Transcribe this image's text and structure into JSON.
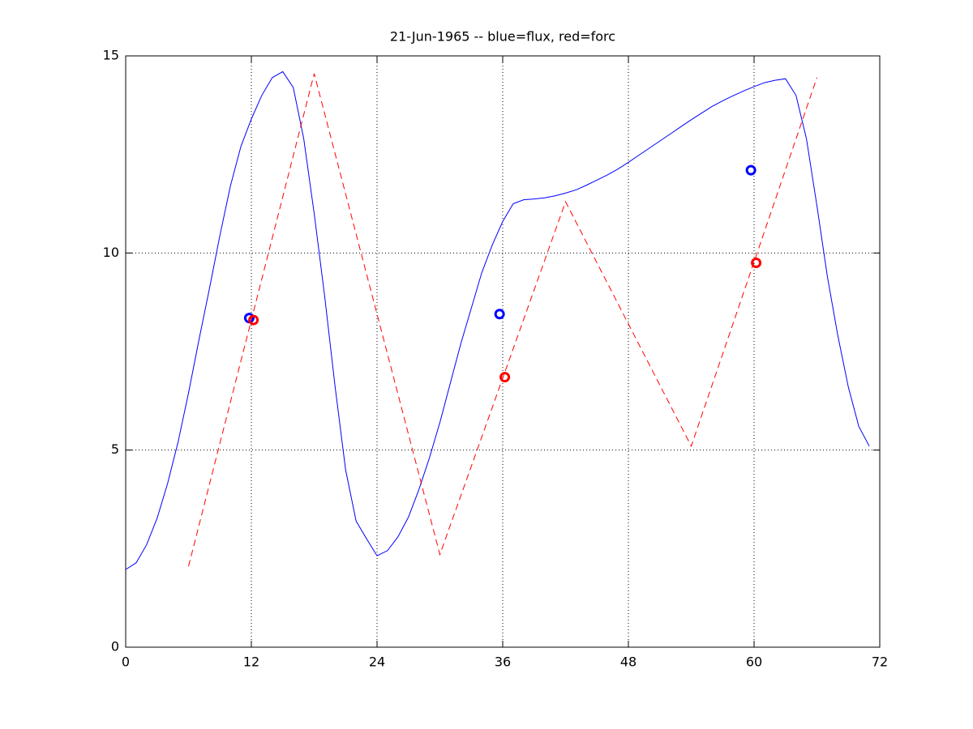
{
  "chart_data": {
    "type": "line",
    "title": "21-Jun-1965 -- blue=flux, red=forc",
    "xlim": [
      0,
      72
    ],
    "xticks": [
      0,
      12,
      24,
      36,
      48,
      60,
      72
    ],
    "ylim": [
      0,
      15
    ],
    "yticks": [
      0,
      5,
      10,
      15
    ],
    "grid": true,
    "series": [
      {
        "color": "#0000ff",
        "style": "solid",
        "x": [
          0,
          1,
          2,
          3,
          4,
          5,
          6,
          7,
          8,
          9,
          10,
          11,
          12,
          13,
          14,
          15,
          16,
          17,
          18,
          19,
          20,
          21,
          22,
          23,
          24,
          25,
          26,
          27,
          28,
          29,
          30,
          31,
          32,
          33,
          34,
          35,
          36,
          37,
          38,
          39,
          40,
          41,
          42,
          43,
          44,
          45,
          46,
          47,
          48,
          49,
          50,
          51,
          52,
          53,
          54,
          55,
          56,
          57,
          58,
          59,
          60,
          61,
          62,
          63,
          64,
          65,
          66,
          67,
          68,
          69,
          70,
          71
        ],
        "values": [
          1.97,
          2.14,
          2.6,
          3.27,
          4.15,
          5.2,
          6.45,
          7.8,
          9.1,
          10.45,
          11.7,
          12.7,
          13.4,
          14.0,
          14.45,
          14.6,
          14.2,
          12.9,
          11.0,
          8.9,
          6.6,
          4.5,
          3.2,
          2.75,
          2.32,
          2.45,
          2.8,
          3.3,
          4.0,
          4.8,
          5.7,
          6.7,
          7.7,
          8.6,
          9.5,
          10.2,
          10.8,
          11.25,
          11.35,
          11.37,
          11.4,
          11.45,
          11.52,
          11.6,
          11.72,
          11.85,
          11.98,
          12.13,
          12.3,
          12.48,
          12.66,
          12.84,
          13.02,
          13.2,
          13.38,
          13.55,
          13.72,
          13.86,
          13.99,
          14.11,
          14.22,
          14.32,
          14.38,
          14.42,
          14.0,
          12.9,
          11.2,
          9.4,
          7.9,
          6.6,
          5.6,
          5.1
        ]
      },
      {
        "color": "#ff0000",
        "style": "dashed",
        "x": [
          6,
          18,
          30,
          42,
          54,
          66
        ],
        "values": [
          2.05,
          14.55,
          2.35,
          11.3,
          5.1,
          14.45
        ]
      },
      {
        "color": "#0000ff",
        "style": "markers",
        "x": [
          11.8,
          35.7,
          59.7
        ],
        "values": [
          8.35,
          8.45,
          12.1
        ]
      },
      {
        "color": "#ff0000",
        "style": "markers",
        "x": [
          12.2,
          36.2,
          60.2
        ],
        "values": [
          8.3,
          6.85,
          9.75
        ]
      }
    ]
  }
}
